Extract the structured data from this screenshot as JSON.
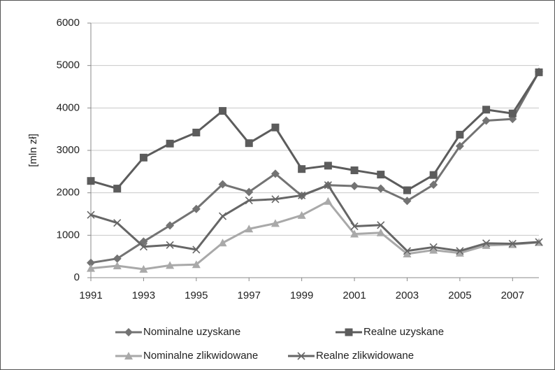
{
  "chart_data": {
    "type": "line",
    "y_label": "[mln zł]",
    "x": [
      1991,
      1992,
      1993,
      1994,
      1995,
      1996,
      1997,
      1998,
      1999,
      2000,
      2001,
      2002,
      2003,
      2004,
      2005,
      2006,
      2007,
      2008
    ],
    "xlim": [
      1991,
      2008
    ],
    "xticks": [
      1991,
      1993,
      1995,
      1997,
      1999,
      2001,
      2003,
      2005,
      2007
    ],
    "ylim": [
      0,
      6000
    ],
    "yticks": [
      0,
      1000,
      2000,
      3000,
      4000,
      5000,
      6000
    ],
    "grid": true,
    "legend": "bottom",
    "series": [
      {
        "name": "Nominalne uzyskane",
        "color": "#737373",
        "marker": "diamond",
        "values": [
          350,
          450,
          850,
          1230,
          1620,
          2200,
          2020,
          2450,
          1930,
          2180,
          2160,
          2100,
          1810,
          2190,
          3100,
          3700,
          3740,
          4850
        ]
      },
      {
        "name": "Realne uzyskane",
        "color": "#5c5c5c",
        "marker": "square",
        "values": [
          2280,
          2100,
          2830,
          3160,
          3420,
          3930,
          3170,
          3540,
          2560,
          2640,
          2530,
          2430,
          2060,
          2420,
          3370,
          3960,
          3870,
          4840
        ]
      },
      {
        "name": "Nominalne zlikwidowane",
        "color": "#a9a9a9",
        "marker": "triangle",
        "values": [
          220,
          280,
          200,
          290,
          310,
          820,
          1150,
          1280,
          1470,
          1800,
          1030,
          1060,
          560,
          650,
          580,
          760,
          780,
          830
        ]
      },
      {
        "name": "Realne zlikwidowane",
        "color": "#666666",
        "marker": "x",
        "values": [
          1480,
          1290,
          730,
          770,
          660,
          1450,
          1820,
          1850,
          1940,
          2180,
          1210,
          1240,
          630,
          720,
          630,
          810,
          800,
          840
        ]
      }
    ]
  }
}
